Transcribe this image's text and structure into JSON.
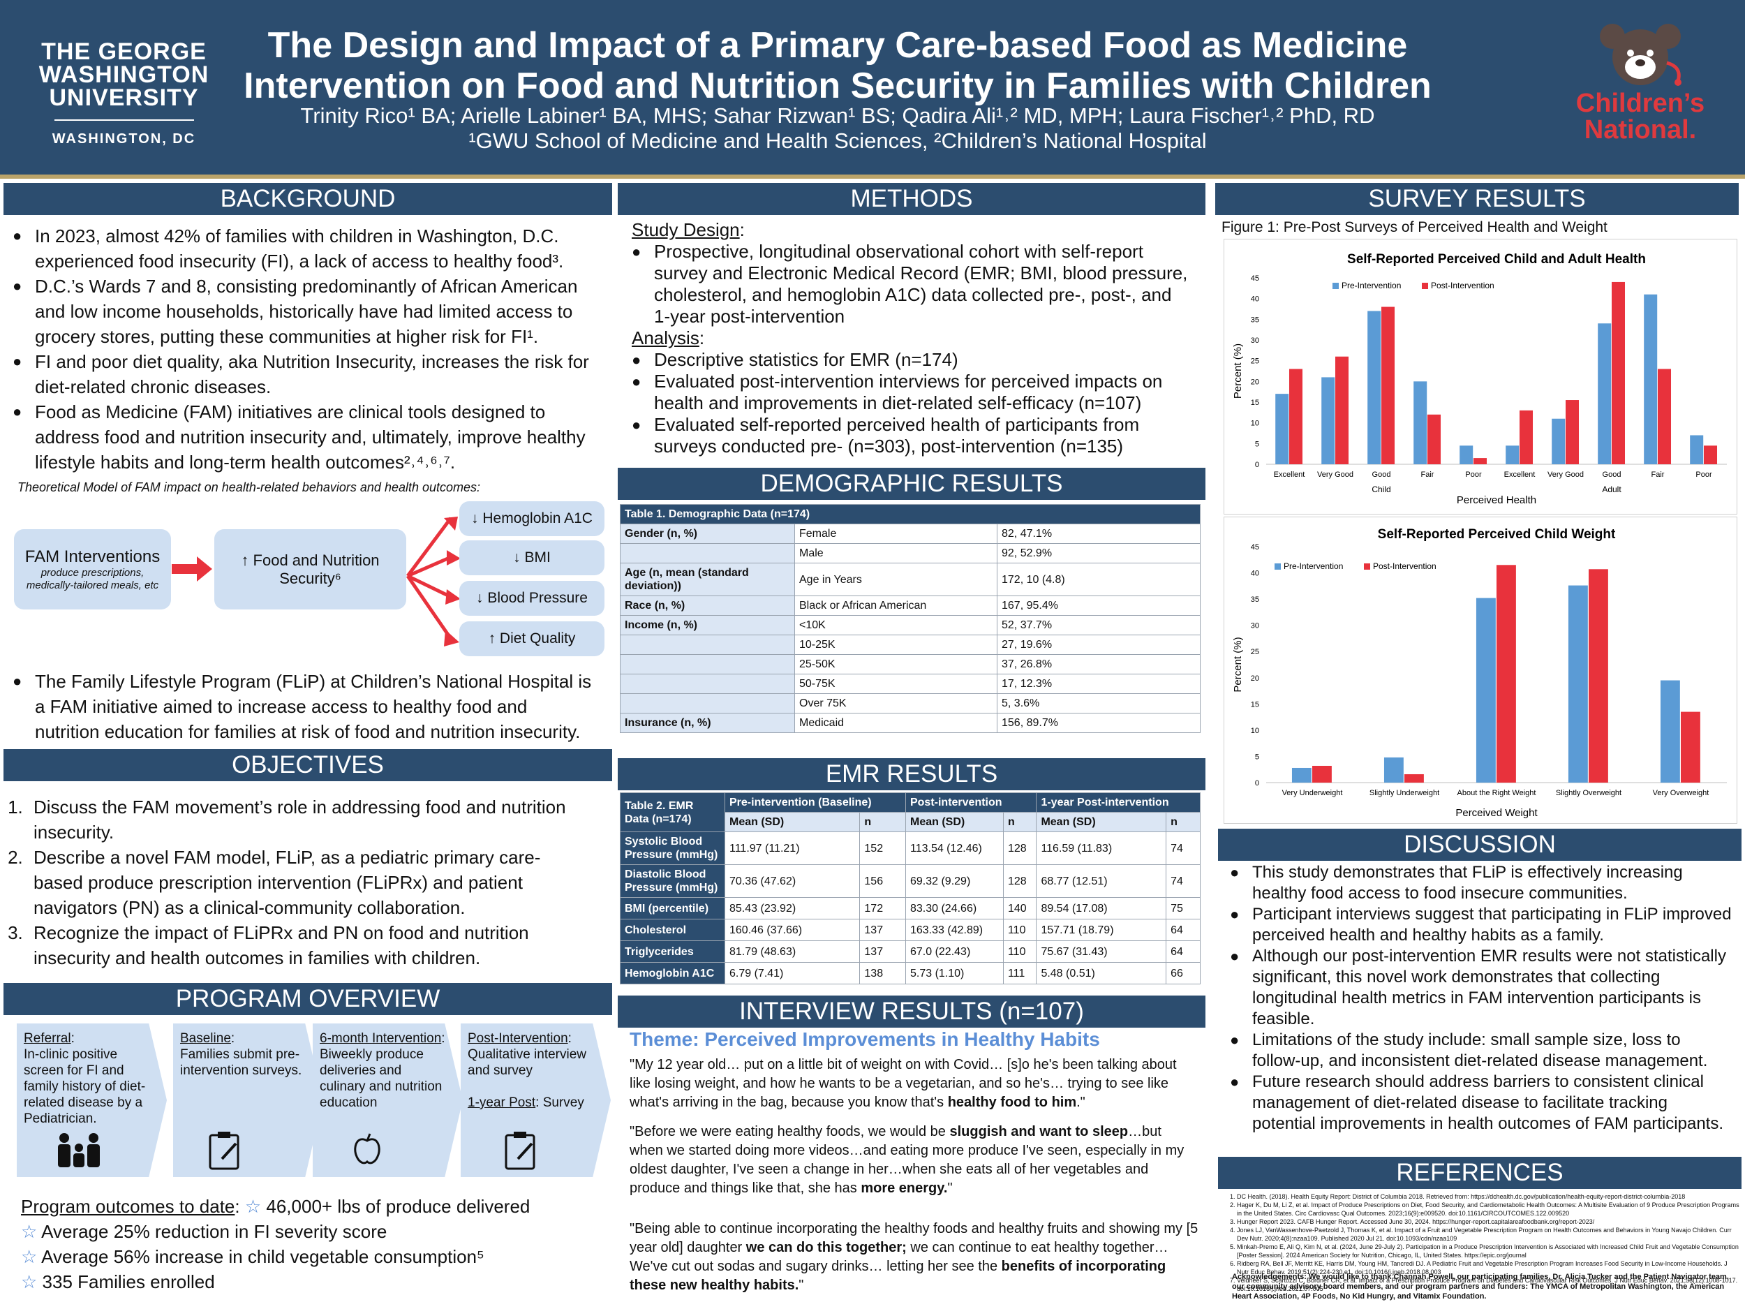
{
  "header": {
    "title_1": "The Design and Impact of a Primary Care-based Food as Medicine",
    "title_2": "Intervention on Food and Nutrition Security in Families with Children",
    "authors": "Trinity Rico¹ BA; Arielle Labiner¹ BA, MHS; Sahar Rizwan¹ BS; Qadira Ali¹˒² MD, MPH; Laura Fischer¹˒² PhD, RD",
    "affiliations": "¹GWU School of Medicine and Health Sciences, ²Children’s National Hospital",
    "logo_left_1": "THE GEORGE",
    "logo_left_2": "WASHINGTON",
    "logo_left_3": "UNIVERSITY",
    "logo_left_4": "WASHINGTON, DC",
    "logo_right_1": "Children’s",
    "logo_right_2": "National."
  },
  "background": {
    "heading": "BACKGROUND",
    "bullets": [
      "In 2023, almost 42% of families with children in Washington, D.C. experienced food insecurity (FI), a lack of access to healthy food³.",
      "D.C.’s Wards 7 and 8, consisting predominantly of African American and low income households, historically have had limited access to grocery stores, putting these communities at higher risk for FI¹.",
      "FI and poor diet quality, aka Nutrition Insecurity, increases the risk for diet-related chronic diseases.",
      "Food as Medicine (FAM) initiatives are clinical tools designed to address food and nutrition insecurity and, ultimately, improve healthy lifestyle habits and long-term health outcomes²˒⁴˒⁶˒⁷."
    ],
    "model_caption": "Theoretical Model of FAM impact on health-related behaviors and health outcomes:",
    "model_box1_title": "FAM Interventions",
    "model_box1_sub": "produce prescriptions, medically-tailored meals, etc",
    "model_box2": "↑ Food and Nutrition Security⁶",
    "model_outcomes": [
      "↓ Hemoglobin A1C",
      "↓ BMI",
      "↓ Blood Pressure",
      "↑ Diet Quality"
    ],
    "flip_bullet": "The Family Lifestyle Program (FLiP) at Children’s National Hospital is a FAM initiative aimed to increase access to healthy food and nutrition education for families at risk of food and nutrition insecurity."
  },
  "objectives": {
    "heading": "OBJECTIVES",
    "items": [
      "Discuss the FAM movement’s role in addressing food and nutrition insecurity.",
      "Describe a novel FAM model, FLiP, as a pediatric primary care-based produce prescription intervention (FLiPRx) and patient navigators (PN) as a clinical-community collaboration.",
      "Recognize the impact of FLiPRx and PN on food and nutrition insecurity and health outcomes in families with children."
    ]
  },
  "program": {
    "heading": "PROGRAM OVERVIEW",
    "steps": [
      {
        "title": "Referral",
        "text": "In-clinic positive screen for FI and family history of diet-related disease by a Pediatrician."
      },
      {
        "title": "Baseline",
        "text": "Families submit pre- intervention surveys."
      },
      {
        "title": "6-month Intervention",
        "text": "Biweekly produce deliveries and culinary and nutrition education"
      },
      {
        "title": "Post-Intervention",
        "text": "Qualitative interview and survey",
        "extra_title": "1-year Post",
        "extra_text": "Survey"
      }
    ],
    "outcomes_label": "Program outcomes to date",
    "outcomes": [
      "46,000+ lbs of produce delivered",
      "Average 25% reduction in FI severity score",
      "Average 56% increase in child vegetable consumption⁵",
      "335 Families enrolled"
    ]
  },
  "methods": {
    "heading": "METHODS",
    "design_label": "Study Design",
    "design_bullets": [
      "Prospective, longitudinal observational cohort with self-report survey and Electronic Medical Record (EMR; BMI, blood pressure, cholesterol, and hemoglobin A1C) data collected pre-, post-, and 1-year post-intervention"
    ],
    "analysis_label": "Analysis",
    "analysis_bullets": [
      "Descriptive statistics for EMR (n=174)",
      "Evaluated post-intervention interviews for perceived impacts on health and improvements in diet-related self-efficacy (n=107)",
      "Evaluated self-reported perceived health of participants from surveys conducted pre- (n=303), post-intervention (n=135)"
    ]
  },
  "demographics": {
    "heading": "DEMOGRAPHIC RESULTS",
    "table_title": "Table 1. Demographic Data (n=174)",
    "rows": [
      {
        "label": "Gender (n, %)",
        "cat": "Female",
        "val": "82, 47.1%"
      },
      {
        "label": "",
        "cat": "Male",
        "val": "92, 52.9%"
      },
      {
        "label": "Age (n, mean (standard deviation))",
        "cat": "Age in Years",
        "val": "172, 10 (4.8)"
      },
      {
        "label": "Race (n, %)",
        "cat": "Black or African American",
        "val": "167, 95.4%"
      },
      {
        "label": "Income (n, %)",
        "cat": "<10K",
        "val": "52, 37.7%"
      },
      {
        "label": "",
        "cat": "10-25K",
        "val": "27, 19.6%"
      },
      {
        "label": "",
        "cat": "25-50K",
        "val": "37, 26.8%"
      },
      {
        "label": "",
        "cat": "50-75K",
        "val": "17, 12.3%"
      },
      {
        "label": "",
        "cat": "Over 75K",
        "val": "5, 3.6%"
      },
      {
        "label": "Insurance (n, %)",
        "cat": "Medicaid",
        "val": "156, 89.7%"
      }
    ]
  },
  "emr": {
    "heading": "EMR RESULTS",
    "table_title": "Table 2. EMR Data (n=174)",
    "groups": [
      "Pre-intervention (Baseline)",
      "Post-intervention",
      "1-year Post-intervention"
    ],
    "sub": [
      "Mean (SD)",
      "n"
    ],
    "rows": [
      {
        "label": "Systolic Blood Pressure (mmHg)",
        "v": [
          "111.97 (11.21)",
          "152",
          "113.54 (12.46)",
          "128",
          "116.59 (11.83)",
          "74"
        ]
      },
      {
        "label": "Diastolic Blood Pressure (mmHg)",
        "v": [
          "70.36 (47.62)",
          "156",
          "69.32 (9.29)",
          "128",
          "68.77 (12.51)",
          "74"
        ]
      },
      {
        "label": "BMI (percentile)",
        "v": [
          "85.43 (23.92)",
          "172",
          "83.30 (24.66)",
          "140",
          "89.54 (17.08)",
          "75"
        ]
      },
      {
        "label": "Cholesterol",
        "v": [
          "160.46 (37.66)",
          "137",
          "163.33 (42.89)",
          "110",
          "157.71 (18.79)",
          "64"
        ]
      },
      {
        "label": "Triglycerides",
        "v": [
          "81.79 (48.63)",
          "137",
          "67.0 (22.43)",
          "110",
          "75.67 (31.43)",
          "64"
        ]
      },
      {
        "label": "Hemoglobin A1C",
        "v": [
          "6.79 (7.41)",
          "138",
          "5.73 (1.10)",
          "111",
          "5.48 (0.51)",
          "66"
        ]
      }
    ]
  },
  "interview": {
    "heading": "INTERVIEW RESULTS (n=107)",
    "theme": "Theme: Perceived Improvements in Healthy Habits",
    "q1a": "\"My 12 year old… put on a little bit of weight on with Covid… [s]o he's been talking about like losing weight, and how he wants to be a vegetarian, and so he's… trying to see like what's arriving in the bag, because you know that's ",
    "q1b": "healthy food to him",
    "q1c": ".\"",
    "q2a": "\"Before we were eating healthy foods, we would be ",
    "q2b": "sluggish and want to sleep",
    "q2c": "…but when we started doing more videos…and eating more produce I've seen, especially in my oldest daughter, I've seen a change in her…when she eats all of her vegetables and produce and things like that, she has ",
    "q2d": "more energy.",
    "q2e": "\"",
    "q3a": "\"Being able to continue incorporating the healthy foods and healthy fruits and showing my [5 year old] daughter ",
    "q3b": "we can do this together;",
    "q3c": " we can continue to eat healthy together… We've cut out sodas and sugary drinks… letting her see the ",
    "q3d": "benefits of incorporating these new healthy habits.",
    "q3e": "\""
  },
  "survey": {
    "heading": "SURVEY RESULTS",
    "figure_caption": "Figure 1: Pre-Post Surveys of Perceived Health and Weight"
  },
  "chart_data": [
    {
      "type": "bar",
      "title": "Self-Reported Perceived Child and Adult Health",
      "xlabel": "Perceived Health",
      "ylabel": "Percent (%)",
      "groups": [
        "Child",
        "Adult"
      ],
      "categories": [
        "Excellent",
        "Very Good",
        "Good",
        "Fair",
        "Poor",
        "Excellent",
        "Very Good",
        "Good",
        "Fair",
        "Poor"
      ],
      "series": [
        {
          "name": "Pre-Intervention",
          "color": "#5b9bd5",
          "values": [
            17,
            21,
            37,
            20,
            4.5,
            4.5,
            11,
            34,
            41,
            7
          ]
        },
        {
          "name": "Post-Intervention",
          "color": "#e8323c",
          "values": [
            23,
            26,
            38,
            12,
            1.5,
            13,
            15.5,
            44,
            23,
            4.5
          ]
        }
      ],
      "ylim": [
        0,
        45
      ],
      "yticks": [
        0,
        5,
        10,
        15,
        20,
        25,
        30,
        35,
        40,
        45
      ],
      "legend": "top-left"
    },
    {
      "type": "bar",
      "title": "Self-Reported Perceived Child Weight",
      "xlabel": "Perceived Weight",
      "ylabel": "Percent (%)",
      "categories": [
        "Very Underweight",
        "Slightly Underweight",
        "About the Right Weight",
        "Slightly Overweight",
        "Very Overweight"
      ],
      "series": [
        {
          "name": "Pre-Intervention",
          "color": "#5b9bd5",
          "values": [
            2.8,
            4.8,
            35.2,
            37.6,
            19.5
          ]
        },
        {
          "name": "Post-Intervention",
          "color": "#e8323c",
          "values": [
            3.2,
            1.6,
            41.5,
            40.7,
            13.5
          ]
        }
      ],
      "ylim": [
        0,
        45
      ],
      "yticks": [
        0,
        5,
        10,
        15,
        20,
        25,
        30,
        35,
        40,
        45
      ],
      "legend": "top-left"
    }
  ],
  "discussion": {
    "heading": "DISCUSSION",
    "bullets": [
      "This study demonstrates that FLiP is effectively increasing healthy food access to food insecure communities.",
      "Participant interviews suggest that participating in FLiP improved perceived health and healthy habits as a family.",
      "Although our post-intervention EMR results were not statistically significant, this novel work demonstrates that collecting longitudinal health metrics in FAM intervention participants is feasible.",
      "Limitations of the study include: small sample size, loss to follow-up, and inconsistent diet-related disease management.",
      "Future research should address barriers to consistent clinical management of diet-related disease to facilitate tracking potential improvements in health outcomes of FAM participants."
    ]
  },
  "references": {
    "heading": "REFERENCES",
    "items": [
      "DC Health. (2018). Health Equity Report: District of Columbia 2018. Retrieved from: https://dchealth.dc.gov/publication/health-equity-report-district-columbia-2018",
      "Hager K, Du M, Li Z, et al. Impact of Produce Prescriptions on Diet, Food Security, and Cardiometabolic Health Outcomes: A Multisite Evaluation of 9 Produce Prescription Programs in the United States. Circ Cardiovasc Qual Outcomes. 2023;16(9):e009520. doi:10.1161/CIRCOUTCOMES.122.009520",
      "Hunger Report 2023. CAFB Hunger Report. Accessed June 30, 2024. https://hunger-report.capitalareafoodbank.org/report-2023/",
      "Jones LJ, VanWassenhove-Paetzold J, Thomas K, et al. Impact of a Fruit and Vegetable Prescription Program on Health Outcomes and Behaviors in Young Navajo Children. Curr Dev Nutr. 2020;4(8):nzaa109. Published 2020 Jul 21. doi:10.1093/cdn/nzaa109",
      "Minkah-Premo E, Ali Q, Kim N, et al. (2024, June 29-July 2). Participation in a Produce Prescription Intervention is Associated with Increased Child Fruit and Vegetable Consumption [Poster Session]. 2024 American Society for Nutrition, Chicago, IL, United States. https://epic.org/journal",
      "Ridberg RA, Bell JF, Merritt KE, Harris DM, Young HM, Tancredi DJ. A Pediatric Fruit and Vegetable Prescription Program Increases Food Security in Low-Income Households. J Nutr Educ Behav. 2019;51(2):224-230.e1. doi:10.1016/j.jneb.2018.08.003",
      "Veldheer S, Scartozzi C, Bordner CR, et al. Impact of a Prescription Produce Program on Diabetes and Cardiovascular Risk Outcomes. J Nutr Educ Behav. 2021;53(12):1008-1017. doi:10.1016/j.jneb.2021.07.005"
    ],
    "ack": "Acknowledgements: We would like to thank Channah Powell, our participating families, Dr. Alicia Tucker and the Patient Navigator team, our community advisory board members, and our program partners and funders: The YMCA of Metropolitan Washington, the American Heart Association, 4P Foods, No Kid Hungry, and Vitamix Foundation."
  }
}
